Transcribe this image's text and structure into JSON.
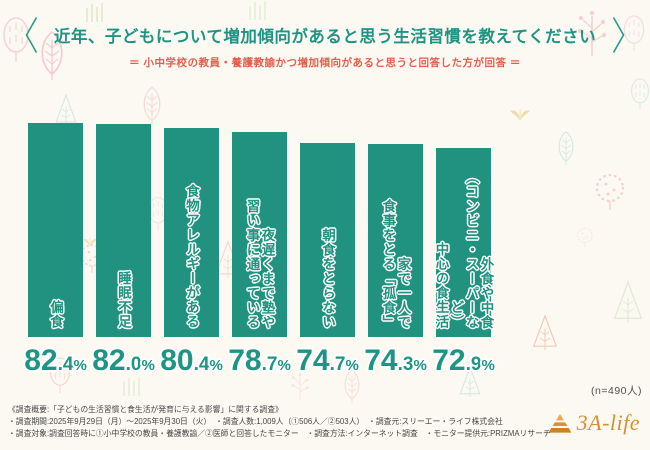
{
  "header": {
    "title": "近年、子どもについて増加傾向があると思う生活習慣を教えてください",
    "subtitle": "＝ 小中学校の教員・養護教諭かつ増加傾向があると思うと回答した方が回答 ＝"
  },
  "chart_data": {
    "type": "bar",
    "title": "近年、子どもについて増加傾向があると思う生活習慣を教えてください",
    "subtitle": "＝ 小中学校の教員・養護教諭かつ増加傾向があると思うと回答した方が回答 ＝",
    "unit": "%",
    "ylim": [
      0,
      100
    ],
    "grid": false,
    "legend": "none",
    "bar_color": "#219180",
    "orientation": "vertical",
    "sample_size_note": "(n=490人)",
    "categories": [
      "偏食",
      "睡眠不足",
      "食物アレルギーがある",
      "夜遅くまで塾や習い事に通っている",
      "朝食をとらない",
      "家で一人で食事をとる「孤食」",
      "外食や中食（コンビニ・スーパーなど）中心の食生活"
    ],
    "values": [
      82.4,
      82.0,
      80.4,
      78.7,
      74.7,
      74.3,
      72.9
    ],
    "bars": [
      {
        "label_vertical": "偏食",
        "value": 82.4,
        "value_int": "82",
        "value_dec": ".4"
      },
      {
        "label_vertical": "睡眠不足",
        "value": 82.0,
        "value_int": "82",
        "value_dec": ".0"
      },
      {
        "label_vertical": "食物アレルギーがある",
        "value": 80.4,
        "value_int": "80",
        "value_dec": ".4"
      },
      {
        "label_vertical": "夜遅くまで塾や\n習い事に通っている",
        "value": 78.7,
        "value_int": "78",
        "value_dec": ".7"
      },
      {
        "label_vertical": "朝食をとらない",
        "value": 74.7,
        "value_int": "74",
        "value_dec": ".7"
      },
      {
        "label_vertical": "家で一人で\n食事をとる「孤食」",
        "value": 74.3,
        "value_int": "74",
        "value_dec": ".3"
      },
      {
        "label_vertical": "外食や中食\n（コンビニ・スーパーなど）\n中心の食生活",
        "value": 72.9,
        "value_int": "72",
        "value_dec": ".9"
      }
    ]
  },
  "footer": {
    "line1": "《調査概要:「子どもの生活習慣と食生活が発育に与える影響」に関する調査》",
    "line2": "・調査期間:2025年9月29日（月）～2025年9月30日（火）　・調査人数:1,009人（①506人／②503人）　・調査元:スリーエー・ライフ株式会社",
    "line3": "・調査対象:調査回答時に①小中学校の教員・養護教諭／②医師と回答したモニター　・調査方法:インターネット調査　・モニター提供元:PRIZMAリサーチ",
    "logo_text": "3A-life"
  },
  "colors": {
    "accent_teal": "#219180",
    "subtitle_red": "#e45f4b",
    "background": "#fcf9f2",
    "logo_orange": "#d98e35",
    "footer_text": "#454545"
  }
}
